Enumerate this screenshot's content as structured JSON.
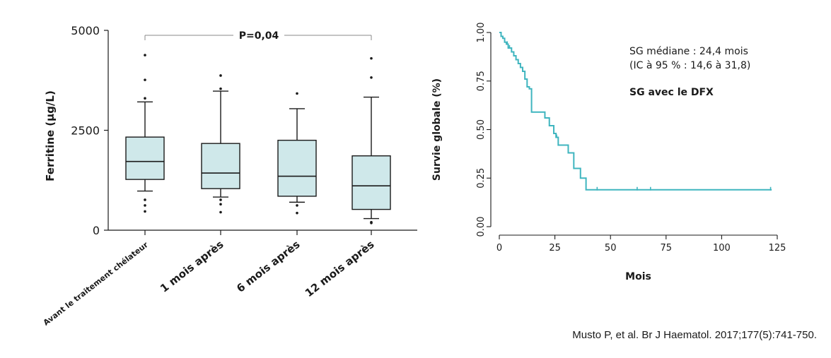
{
  "colors": {
    "box_fill": "#cfe8ea",
    "curve": "#3fb5bf",
    "ink": "#1a1a1a"
  },
  "chart_data": [
    {
      "type": "box",
      "ylabel": "Ferritine (µg/L)",
      "ylim": [
        0,
        5000
      ],
      "yticks": [
        "0",
        "2500",
        "5000"
      ],
      "ytick_values": [
        0,
        2500,
        5000
      ],
      "categories": [
        "Avant le traitement chélateur",
        "1 mois après",
        "6 mois après",
        "12 mois après"
      ],
      "boxes": [
        {
          "whisker_low": 980,
          "q1": 1270,
          "median": 1720,
          "q3": 2330,
          "whisker_high": 3210,
          "outliers": [
            4380,
            3760,
            3300,
            760,
            620,
            470
          ]
        },
        {
          "whisker_low": 830,
          "q1": 1040,
          "median": 1430,
          "q3": 2170,
          "whisker_high": 3480,
          "outliers": [
            3870,
            3540,
            760,
            650,
            450
          ]
        },
        {
          "whisker_low": 700,
          "q1": 850,
          "median": 1350,
          "q3": 2250,
          "whisker_high": 3040,
          "outliers": [
            3420,
            620,
            430
          ]
        },
        {
          "whisker_low": 290,
          "q1": 520,
          "median": 1110,
          "q3": 1860,
          "whisker_high": 3330,
          "outliers": [
            4300,
            3820,
            200,
            180
          ]
        }
      ],
      "annotation": "P=0,04"
    },
    {
      "type": "line",
      "xlabel": "Mois",
      "ylabel": "Survie globale (%)",
      "xlim": [
        0,
        125
      ],
      "ylim": [
        0,
        1
      ],
      "xticks": [
        "0",
        "25",
        "50",
        "75",
        "100",
        "125"
      ],
      "xtick_values": [
        0,
        25,
        50,
        75,
        100,
        125
      ],
      "yticks": [
        "0.00",
        "0.25",
        "0.50",
        "0.75",
        "1.00"
      ],
      "ytick_values": [
        0,
        0.25,
        0.5,
        0.75,
        1
      ],
      "series": [
        {
          "steps": [
            [
              0,
              1.0
            ],
            [
              0.8,
              0.98
            ],
            [
              1.6,
              0.97
            ],
            [
              2.4,
              0.95
            ],
            [
              3.2,
              0.94
            ],
            [
              4.0,
              0.92
            ],
            [
              5.5,
              0.9
            ],
            [
              6.5,
              0.88
            ],
            [
              7.5,
              0.86
            ],
            [
              8.5,
              0.84
            ],
            [
              9.5,
              0.82
            ],
            [
              10.5,
              0.8
            ],
            [
              11.5,
              0.76
            ],
            [
              12.5,
              0.72
            ],
            [
              13.5,
              0.71
            ],
            [
              14.5,
              0.59
            ],
            [
              15.5,
              0.59
            ],
            [
              20.5,
              0.56
            ],
            [
              22.5,
              0.52
            ],
            [
              24.5,
              0.48
            ],
            [
              25.5,
              0.46
            ],
            [
              26.5,
              0.42
            ],
            [
              30.0,
              0.42
            ],
            [
              31.0,
              0.38
            ],
            [
              33.5,
              0.3
            ],
            [
              36.5,
              0.25
            ],
            [
              39.0,
              0.19
            ],
            [
              122.5,
              0.19
            ]
          ],
          "censors": [
            [
              44,
              0.19
            ],
            [
              62,
              0.19
            ],
            [
              68,
              0.19
            ],
            [
              122,
              0.19
            ],
            [
              25.8,
              0.46
            ],
            [
              3.6,
              0.94
            ],
            [
              4.6,
              0.92
            ]
          ]
        }
      ],
      "annotations": [
        "SG médiane : 24,4 mois",
        "(IC à 95 % : 14,6 à 31,8)",
        "SG avec le DFX"
      ]
    }
  ],
  "citation": "Musto P, et al. Br J Haematol. 2017;177(5):741-750."
}
